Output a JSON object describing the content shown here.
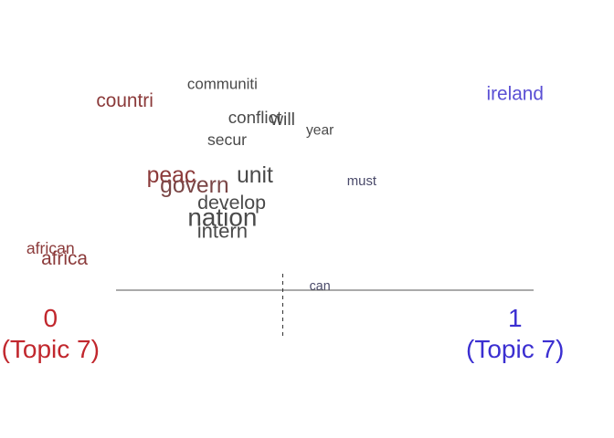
{
  "chart_data": {
    "type": "scatter",
    "title": "",
    "xlabel": "",
    "ylabel": "",
    "xlim": [
      -0.03,
      1.15
    ],
    "axis": {
      "endpoints": [
        {
          "value": 0,
          "label": "0",
          "sublabel": "(Topic 7)",
          "color": "#c1272d"
        },
        {
          "value": 1,
          "label": "1",
          "sublabel": "(Topic 7)",
          "color": "#3b2fd1"
        }
      ],
      "midline_value": 0.5
    },
    "words": [
      {
        "text": "countri",
        "x": 0.16,
        "row": 1.0,
        "size": 1.6,
        "color": "#8b3a3a"
      },
      {
        "text": "communiti",
        "x": 0.37,
        "row": 0.0,
        "size": 1.3,
        "color": "#4a4a4a"
      },
      {
        "text": "ireland",
        "x": 1.0,
        "row": 0.6,
        "size": 1.6,
        "color": "#5a4fd4"
      },
      {
        "text": "conflict",
        "x": 0.44,
        "row": 2.0,
        "size": 1.45,
        "color": "#4a4a4a"
      },
      {
        "text": "will",
        "x": 0.5,
        "row": 2.1,
        "size": 1.5,
        "color": "#4a4a4a"
      },
      {
        "text": "year",
        "x": 0.58,
        "row": 2.7,
        "size": 1.2,
        "color": "#4a4a4a"
      },
      {
        "text": "secur",
        "x": 0.38,
        "row": 3.3,
        "size": 1.35,
        "color": "#4a4a4a"
      },
      {
        "text": "peac",
        "x": 0.26,
        "row": 5.4,
        "size": 1.9,
        "color": "#8b3a3a"
      },
      {
        "text": "unit",
        "x": 0.44,
        "row": 5.4,
        "size": 1.9,
        "color": "#4a4a4a"
      },
      {
        "text": "govern",
        "x": 0.31,
        "row": 6.0,
        "size": 1.9,
        "color": "#7a4646"
      },
      {
        "text": "must",
        "x": 0.67,
        "row": 5.7,
        "size": 1.15,
        "color": "#4a4a6a"
      },
      {
        "text": "develop",
        "x": 0.39,
        "row": 7.0,
        "size": 1.65,
        "color": "#4a4a4a"
      },
      {
        "text": "nation",
        "x": 0.37,
        "row": 7.9,
        "size": 2.15,
        "color": "#4a4a4a"
      },
      {
        "text": "intern",
        "x": 0.37,
        "row": 8.7,
        "size": 1.7,
        "color": "#4a4a4a"
      },
      {
        "text": "african",
        "x": 0.0,
        "row": 9.7,
        "size": 1.35,
        "color": "#8b3a3a"
      },
      {
        "text": "africa",
        "x": 0.03,
        "row": 10.3,
        "size": 1.6,
        "color": "#8b3a3a"
      },
      {
        "text": "can",
        "x": 0.58,
        "row": 11.9,
        "size": 1.1,
        "color": "#4a4a6a"
      }
    ]
  }
}
